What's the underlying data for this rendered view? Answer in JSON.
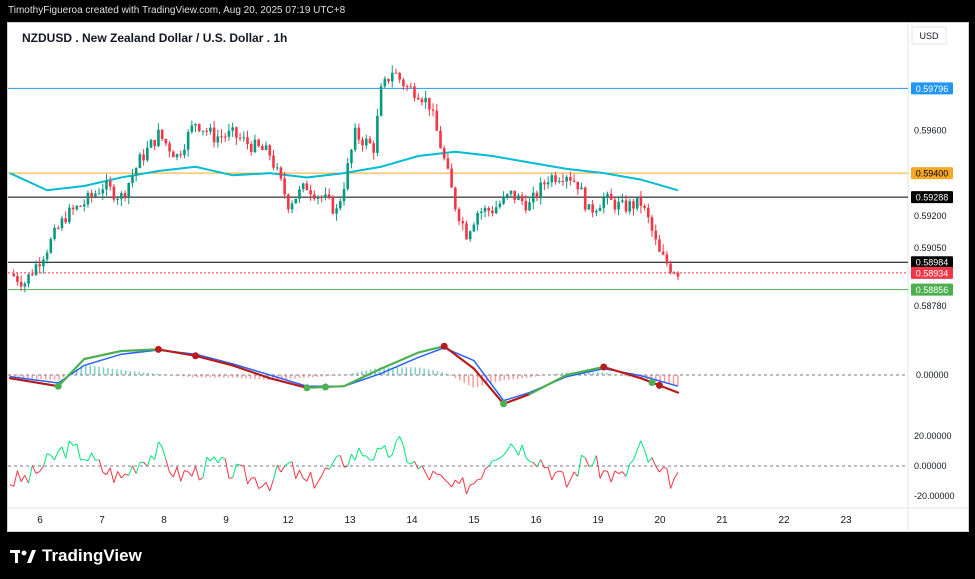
{
  "header": {
    "credit": "TimothyFigueroa created with TradingView.com, Aug 20, 2025 07:19 UTC+8"
  },
  "brand": {
    "name": "TradingView",
    "logo_icon": "tradingview-logo-icon"
  },
  "chart_data": {
    "type": "candlestick",
    "title": "NZDUSD . New Zealand Dollar / U.S. Dollar . 1h",
    "currency": "USD",
    "x_ticks": [
      "6",
      "7",
      "8",
      "9",
      "12",
      "13",
      "14",
      "15",
      "16",
      "19",
      "20",
      "21",
      "22",
      "23"
    ],
    "y_ticks": [
      "0.59600",
      "0.59200",
      "0.59050",
      "0.58780"
    ],
    "ylim": [
      0.587,
      0.5998
    ],
    "price_lines": [
      {
        "value": 0.59796,
        "label": "0.59796",
        "color": "#2196f3",
        "label_color": "#ffffff",
        "style": "solid"
      },
      {
        "value": 0.594,
        "label": "0.59400",
        "color": "#f9a825",
        "label_color": "#000000",
        "style": "solid"
      },
      {
        "value": 0.59288,
        "label": "0.59288",
        "color": "#000000",
        "label_color": "#ffffff",
        "style": "solid"
      },
      {
        "value": 0.58984,
        "label": "0.58984",
        "color": "#000000",
        "label_color": "#ffffff",
        "style": "solid"
      },
      {
        "value": 0.58934,
        "label": "0.58934",
        "color": "#f23645",
        "label_color": "#ffffff",
        "style": "dotted"
      },
      {
        "value": 0.58856,
        "label": "0.58856",
        "color": "#4caf50",
        "label_color": "#ffffff",
        "style": "solid"
      }
    ],
    "price_path": [
      [
        0,
        0.5893
      ],
      [
        0.4,
        0.5889
      ],
      [
        1,
        0.5905
      ],
      [
        1.5,
        0.592
      ],
      [
        2,
        0.5926
      ],
      [
        2.5,
        0.5934
      ],
      [
        3,
        0.5929
      ],
      [
        3.5,
        0.5946
      ],
      [
        4,
        0.5958
      ],
      [
        4.5,
        0.5948
      ],
      [
        5,
        0.5964
      ],
      [
        5.5,
        0.5957
      ],
      [
        6,
        0.5958
      ],
      [
        6.5,
        0.5953
      ],
      [
        7,
        0.5949
      ],
      [
        7.5,
        0.5926
      ],
      [
        8,
        0.5934
      ],
      [
        8.6,
        0.5926
      ],
      [
        8.8,
        0.5922
      ],
      [
        9,
        0.5935
      ],
      [
        9.3,
        0.5958
      ],
      [
        9.8,
        0.5952
      ],
      [
        10,
        0.5978
      ],
      [
        10.3,
        0.5988
      ],
      [
        10.7,
        0.598
      ],
      [
        11,
        0.5978
      ],
      [
        11.3,
        0.5972
      ],
      [
        11.6,
        0.5953
      ],
      [
        12,
        0.5925
      ],
      [
        12.3,
        0.5912
      ],
      [
        12.6,
        0.5922
      ],
      [
        13,
        0.5923
      ],
      [
        13.5,
        0.593
      ],
      [
        14,
        0.5925
      ],
      [
        14.5,
        0.5938
      ],
      [
        15,
        0.594
      ],
      [
        15.3,
        0.5935
      ],
      [
        15.6,
        0.5922
      ],
      [
        16,
        0.5928
      ],
      [
        16.5,
        0.5924
      ],
      [
        17,
        0.5926
      ],
      [
        17.2,
        0.5918
      ],
      [
        17.5,
        0.5902
      ],
      [
        17.8,
        0.5896
      ],
      [
        18,
        0.5894
      ]
    ],
    "ema": [
      [
        0,
        0.594
      ],
      [
        1,
        0.5932
      ],
      [
        2,
        0.5934
      ],
      [
        3,
        0.5938
      ],
      [
        4,
        0.5941
      ],
      [
        5,
        0.5943
      ],
      [
        6,
        0.5939
      ],
      [
        7,
        0.594
      ],
      [
        8,
        0.5938
      ],
      [
        9,
        0.594
      ],
      [
        10,
        0.5943
      ],
      [
        11,
        0.5948
      ],
      [
        12,
        0.595
      ],
      [
        13,
        0.5948
      ],
      [
        14,
        0.5945
      ],
      [
        15,
        0.5942
      ],
      [
        16,
        0.594
      ],
      [
        17,
        0.5937
      ],
      [
        18,
        0.5932
      ]
    ],
    "oscillator": {
      "y_label": "0.00000",
      "zero_line": true,
      "fast": [
        [
          0,
          -0.1
        ],
        [
          1.3,
          -0.35
        ],
        [
          2,
          0.5
        ],
        [
          3,
          0.75
        ],
        [
          4,
          0.8
        ],
        [
          5,
          0.6
        ],
        [
          6,
          0.3
        ],
        [
          7,
          -0.1
        ],
        [
          8,
          -0.4
        ],
        [
          9,
          -0.35
        ],
        [
          10,
          0.2
        ],
        [
          11,
          0.7
        ],
        [
          11.7,
          0.9
        ],
        [
          12.5,
          0.2
        ],
        [
          13.3,
          -0.9
        ],
        [
          14,
          -0.6
        ],
        [
          15,
          0
        ],
        [
          16,
          0.25
        ],
        [
          17,
          -0.1
        ],
        [
          18,
          -0.55
        ]
      ],
      "slow": [
        [
          0,
          -0.05
        ],
        [
          1.3,
          -0.25
        ],
        [
          2,
          0.3
        ],
        [
          3,
          0.65
        ],
        [
          4,
          0.78
        ],
        [
          5,
          0.65
        ],
        [
          6,
          0.35
        ],
        [
          7,
          0
        ],
        [
          8,
          -0.35
        ],
        [
          9,
          -0.35
        ],
        [
          10,
          0.05
        ],
        [
          11,
          0.55
        ],
        [
          11.7,
          0.85
        ],
        [
          12.5,
          0.45
        ],
        [
          13.3,
          -0.8
        ],
        [
          14,
          -0.55
        ],
        [
          15,
          -0.05
        ],
        [
          16,
          0.2
        ],
        [
          17,
          -0.02
        ],
        [
          18,
          -0.35
        ]
      ]
    },
    "rsi": {
      "y_ticks": [
        "20.00000",
        "0.00000",
        "-20.00000"
      ],
      "ylim": [
        -26,
        26
      ],
      "values": [
        [
          0,
          -10
        ],
        [
          0.5,
          -8
        ],
        [
          1,
          2
        ],
        [
          1.5,
          12
        ],
        [
          2,
          8
        ],
        [
          2.5,
          -2
        ],
        [
          3,
          -8
        ],
        [
          3.5,
          4
        ],
        [
          4,
          10
        ],
        [
          4.5,
          -6
        ],
        [
          5,
          -4
        ],
        [
          5.5,
          2
        ],
        [
          6,
          -4
        ],
        [
          6.5,
          -8
        ],
        [
          7,
          -10
        ],
        [
          7.5,
          0
        ],
        [
          8,
          -12
        ],
        [
          8.5,
          -4
        ],
        [
          9,
          4
        ],
        [
          9.5,
          10
        ],
        [
          10,
          6
        ],
        [
          10.5,
          14
        ],
        [
          11,
          -2
        ],
        [
          11.5,
          -8
        ],
        [
          12,
          -16
        ],
        [
          12.5,
          -10
        ],
        [
          13,
          8
        ],
        [
          13.5,
          16
        ],
        [
          14,
          10
        ],
        [
          14.5,
          0
        ],
        [
          15,
          -12
        ],
        [
          15.5,
          6
        ],
        [
          16,
          -4
        ],
        [
          16.5,
          -8
        ],
        [
          17,
          12
        ],
        [
          17.5,
          -6
        ],
        [
          18,
          -10
        ]
      ]
    }
  }
}
